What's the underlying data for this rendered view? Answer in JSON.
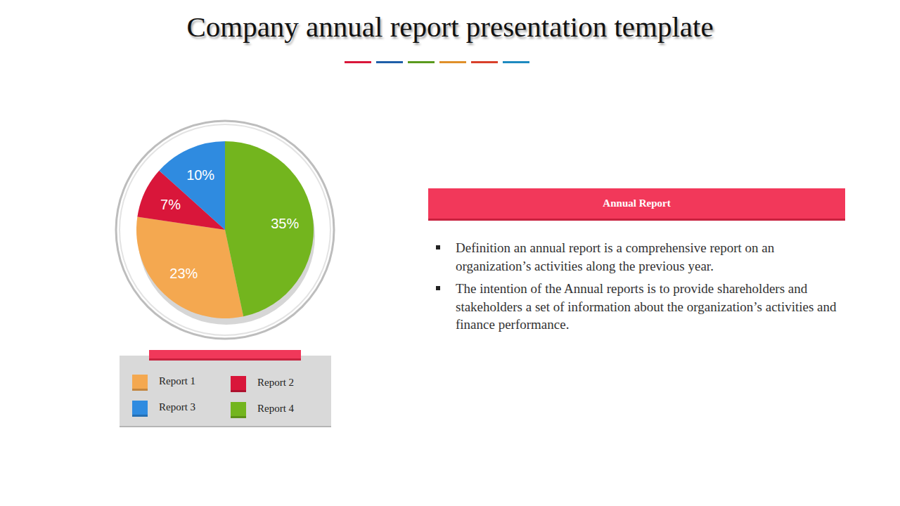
{
  "chart_data": {
    "type": "pie",
    "title": "Company annual report presentation template",
    "categories": [
      "Report 1",
      "Report 2",
      "Report 3",
      "Report 4"
    ],
    "values": [
      23,
      7,
      10,
      35
    ],
    "value_labels": [
      "23%",
      "7%",
      "10%",
      "35%"
    ],
    "colors": [
      "#f4a850",
      "#d9163a",
      "#2f8be0",
      "#73b51e"
    ],
    "data_labels": true,
    "legend": "bottom"
  },
  "panel": {
    "title": "Annual Report",
    "bullets": [
      "Definition an annual report is a comprehensive report on an organization’s activities along the previous year.",
      "The intention of the Annual reports is to provide shareholders and stakeholders a set of information about the organization’s activities and finance performance."
    ]
  }
}
